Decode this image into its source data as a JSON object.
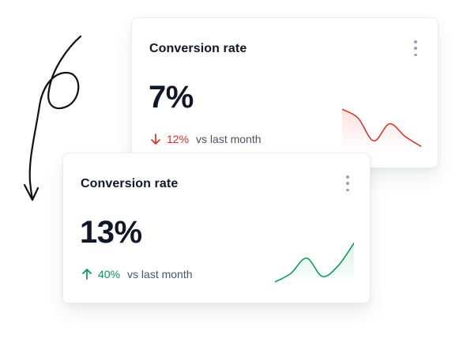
{
  "cards": [
    {
      "title": "Conversion rate",
      "value": "7%",
      "change": "12%",
      "direction": "down",
      "suffix": "vs last month",
      "color": "#d92d20",
      "trend": [
        0.92,
        0.72,
        0.18,
        0.58,
        0.28,
        0.05
      ],
      "menu_icon": "more-vertical-icon"
    },
    {
      "title": "Conversion rate",
      "value": "13%",
      "change": "40%",
      "direction": "up",
      "suffix": "vs last month",
      "color": "#039855",
      "trend": [
        0.04,
        0.24,
        0.6,
        0.17,
        0.42,
        0.95
      ],
      "menu_icon": "more-vertical-icon"
    }
  ]
}
